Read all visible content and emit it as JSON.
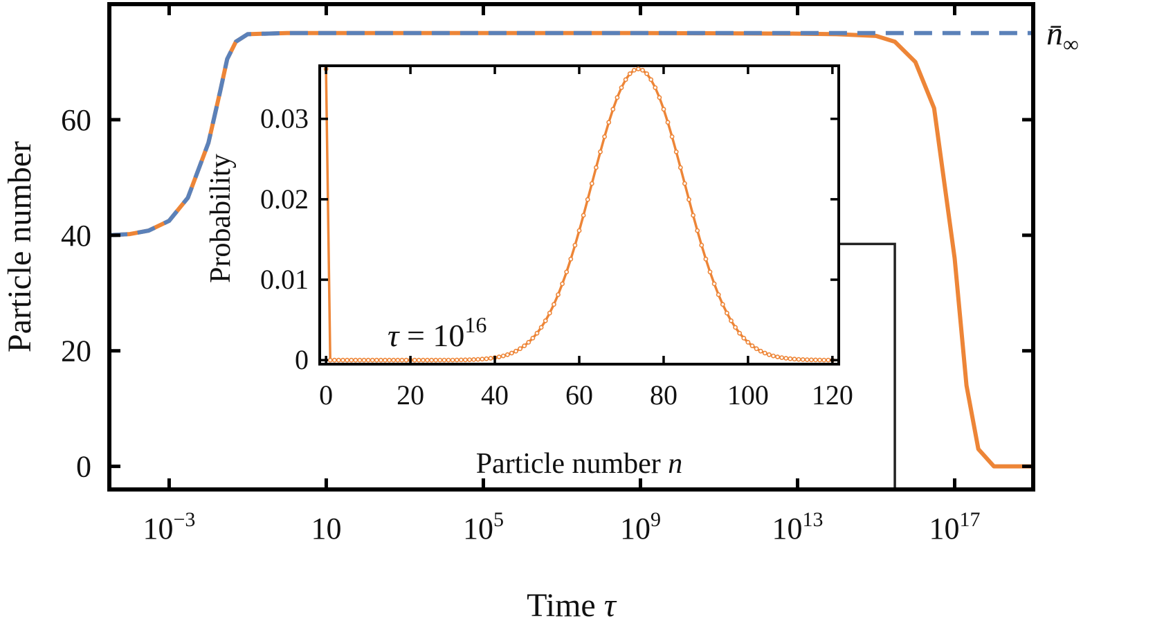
{
  "chart_data": [
    {
      "type": "line",
      "xlabel": "Time τ",
      "ylabel": "Particle number",
      "x_scale": "log",
      "xlim": [
        3e-05,
        10000000000000000000
      ],
      "ylim": [
        -4,
        80
      ],
      "xticks": [
        {
          "value": 0.001,
          "base": "10",
          "exp": "−3"
        },
        {
          "value": 10,
          "base": "10",
          "exp": ""
        },
        {
          "value": 100000,
          "base": "10",
          "exp": "5"
        },
        {
          "value": 1000000000,
          "base": "10",
          "exp": "9"
        },
        {
          "value": 10000000000000,
          "base": "10",
          "exp": "13"
        },
        {
          "value": 100000000000000000,
          "base": "10",
          "exp": "17"
        }
      ],
      "yticks": [
        0,
        20,
        40,
        60
      ],
      "ytick_labels": [
        "0",
        "20",
        "40",
        "60"
      ],
      "series": [
        {
          "color": "#ED8537",
          "style": "solid",
          "x": [
            3e-05,
            0.0001,
            0.0003,
            0.001,
            0.003,
            0.01,
            0.02,
            0.03,
            0.05,
            0.1,
            1,
            1000,
            1000000000,
            10000000000000,
            100000000000000,
            1000000000000000,
            3000000000000000,
            10000000000000000,
            30000000000000000,
            100000000000000000,
            200000000000000000,
            400000000000000000,
            1000000000000000000,
            10000000000000000000
          ],
          "y": [
            40,
            40.2,
            40.8,
            42.5,
            46.5,
            56,
            65,
            70.5,
            73.5,
            74.8,
            75,
            75,
            75,
            74.9,
            74.8,
            74.5,
            73.5,
            70,
            62,
            36,
            14,
            3,
            0,
            0
          ]
        },
        {
          "color": "#5B81B9",
          "style": "dashed",
          "x": [
            3e-05,
            0.0001,
            0.0003,
            0.001,
            0.003,
            0.01,
            0.02,
            0.03,
            0.05,
            0.1,
            1,
            1000,
            1000000000,
            10000000000000,
            10000000000000000000
          ],
          "y": [
            40,
            40.2,
            40.8,
            42.5,
            46.5,
            56,
            65,
            70.5,
            73.5,
            74.8,
            75,
            75,
            75,
            75,
            75
          ]
        }
      ],
      "annotations": [
        {
          "text_main": "n̄",
          "text_sub": "∞",
          "y": 75
        }
      ],
      "connector": {
        "x": 3000000000000000,
        "y_top": 38.5,
        "color": "#222222"
      }
    },
    {
      "type": "line",
      "xlabel": "Particle number n",
      "xlabel_main": "Particle number ",
      "xlabel_italic": "n",
      "ylabel": "Probability",
      "xlim": [
        -1.5,
        121.5
      ],
      "ylim": [
        -0.0005,
        0.0366
      ],
      "xticks": [
        0,
        20,
        40,
        60,
        80,
        100,
        120
      ],
      "yticks": [
        0,
        0.01,
        0.02,
        0.03
      ],
      "ytick_labels": [
        "0",
        "0.01",
        "0.02",
        "0.03"
      ],
      "annotation": {
        "symbol": "τ",
        "rest": " = 10",
        "exp": "16"
      },
      "series": [
        {
          "color": "#ED8537",
          "markers": "open-circle",
          "distribution": {
            "n0_probability": 0.0362,
            "mean": 74,
            "std": 11,
            "peak_probability": 0.0362,
            "range": [
              0,
              120
            ]
          }
        }
      ]
    }
  ]
}
